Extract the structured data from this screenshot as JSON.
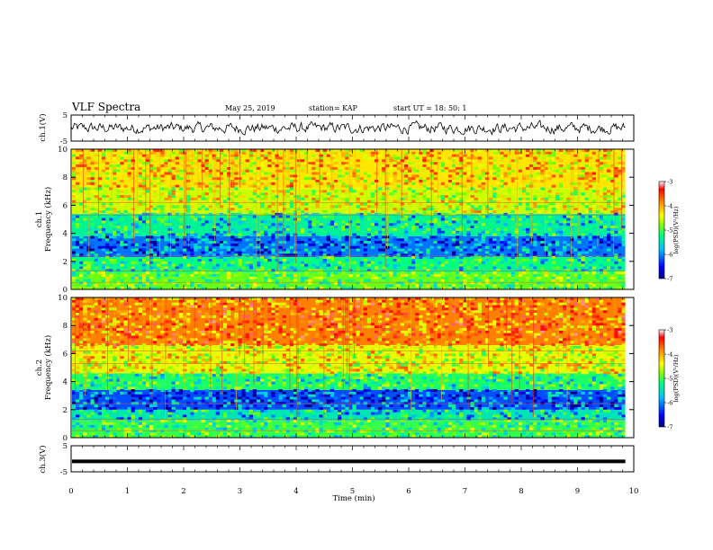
{
  "header": {
    "title": "VLF Spectra",
    "date": "May 25, 2019",
    "station": "station= KAP",
    "start": "start UT =  18: 50: 1"
  },
  "chart_data": [
    {
      "type": "line",
      "panel": "ch1-waveform",
      "ylabel": "ch.1(V)",
      "ylim": [
        -5,
        5
      ],
      "yticks": [
        "5",
        "-5"
      ],
      "xlim": [
        0,
        10
      ],
      "x_end": 9.85,
      "series": [
        {
          "color": "#000000",
          "baseline": 0,
          "amplitude": 1.5,
          "style": "noisy"
        }
      ]
    },
    {
      "type": "heatmap",
      "panel": "ch1-spectrogram",
      "ylabel": "ch.1\nFrequency (kHz)",
      "ylim": [
        0,
        10
      ],
      "yticks": [
        "0",
        "2",
        "4",
        "6",
        "8",
        "10"
      ],
      "xlim": [
        0,
        10
      ],
      "x_end": 9.85,
      "bands": [
        {
          "from": 0,
          "to": 1.2,
          "level": -5.1
        },
        {
          "from": 1.2,
          "to": 2.3,
          "level": -5.5
        },
        {
          "from": 2.3,
          "to": 3.8,
          "level": -6.2
        },
        {
          "from": 3.8,
          "to": 5.4,
          "level": -5.6
        },
        {
          "from": 5.4,
          "to": 7.2,
          "level": -4.7
        },
        {
          "from": 7.2,
          "to": 10,
          "level": -4.4
        }
      ],
      "colorbar": {
        "label": "log(PSD)(V²/Hz)",
        "ticks": [
          "-3",
          "-4",
          "-5",
          "-6",
          "-7"
        ],
        "range": [
          -7,
          -3
        ]
      }
    },
    {
      "type": "heatmap",
      "panel": "ch2-spectrogram",
      "ylabel": "ch.2\nFrequency (kHz)",
      "ylim": [
        0,
        10
      ],
      "yticks": [
        "0",
        "2",
        "4",
        "6",
        "8",
        "10"
      ],
      "xlim": [
        0,
        10
      ],
      "x_end": 9.85,
      "bands": [
        {
          "from": 0,
          "to": 1.2,
          "level": -5.3
        },
        {
          "from": 1.2,
          "to": 2.0,
          "level": -5.7
        },
        {
          "from": 2.0,
          "to": 3.4,
          "level": -6.3
        },
        {
          "from": 3.4,
          "to": 4.6,
          "level": -5.4
        },
        {
          "from": 4.6,
          "to": 6.6,
          "level": -4.6
        },
        {
          "from": 6.6,
          "to": 10,
          "level": -4.0
        }
      ],
      "colorbar": {
        "label": "log(PSD)(V²/Hz)",
        "ticks": [
          "-3",
          "-4",
          "-5",
          "-6",
          "-7"
        ],
        "range": [
          -7,
          -3
        ]
      }
    },
    {
      "type": "line",
      "panel": "ch3-waveform",
      "ylabel": "ch.3(V)",
      "ylim": [
        -5,
        5
      ],
      "yticks": [
        "5",
        "-5"
      ],
      "xlim": [
        0,
        10
      ],
      "x_end": 9.85,
      "xlabel": "Time (min)",
      "xticks": [
        "0",
        "1",
        "2",
        "3",
        "4",
        "5",
        "6",
        "7",
        "8",
        "9",
        "10"
      ],
      "series": [
        {
          "color": "#000000",
          "baseline": -1,
          "amplitude": 0,
          "style": "flat"
        }
      ]
    }
  ],
  "colors": {
    "scale": [
      "#000080",
      "#0000ff",
      "#00c0ff",
      "#00ff80",
      "#80ff00",
      "#ffff00",
      "#ff8000",
      "#ff0000",
      "#ffffff"
    ]
  }
}
